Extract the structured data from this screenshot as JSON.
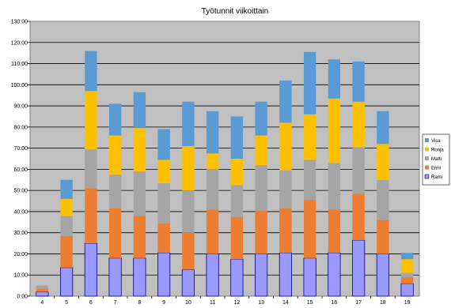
{
  "chart_data": {
    "type": "bar",
    "stacked": true,
    "title": "Työtunnit viikoittain",
    "xlabel": "",
    "ylabel": "",
    "categories": [
      "4",
      "5",
      "6",
      "7",
      "8",
      "9",
      "10",
      "11",
      "12",
      "13",
      "14",
      "15",
      "16",
      "17",
      "18",
      "19"
    ],
    "ylim": [
      0,
      130
    ],
    "y_tick_step": 10,
    "y_tick_labels": [
      "0:00",
      "10:00",
      "20:00",
      "30:00",
      "40:00",
      "50:00",
      "60:00",
      "70:00",
      "80:00",
      "90:00",
      "100:00",
      "110:00",
      "120:00",
      "130:00"
    ],
    "grid": true,
    "plot_background": "#c0c0c0",
    "legend_position": "right",
    "series": [
      {
        "name": "Rami",
        "color": "#9999ff",
        "values": [
          2,
          13.5,
          25,
          18,
          18,
          20.5,
          12.5,
          20,
          17.5,
          20,
          20.5,
          18,
          20.5,
          26.5,
          20,
          6
        ]
      },
      {
        "name": "Enni",
        "color": "#ed7d31",
        "values": [
          1.5,
          15,
          26,
          23.5,
          20,
          14,
          17.5,
          21,
          20,
          20.5,
          21,
          27.5,
          20.5,
          22,
          16,
          3
        ]
      },
      {
        "name": "Matti",
        "color": "#a5a5a5",
        "values": [
          1.5,
          9.5,
          18.5,
          16,
          21,
          19,
          20,
          19,
          15,
          21.5,
          18,
          19,
          22,
          22,
          19,
          2
        ]
      },
      {
        "name": "Ronja",
        "color": "#ffc000",
        "values": [
          0,
          8,
          27.5,
          18.5,
          20.5,
          11,
          21,
          7.5,
          12.5,
          14,
          22.5,
          21.5,
          30.5,
          21.5,
          17,
          6.5
        ]
      },
      {
        "name": "Visa",
        "color": "#5b9bd5",
        "values": [
          0,
          9,
          19,
          15,
          17,
          14.5,
          21,
          20,
          20,
          16,
          20,
          29.5,
          18.5,
          19,
          15.5,
          3
        ]
      }
    ]
  }
}
